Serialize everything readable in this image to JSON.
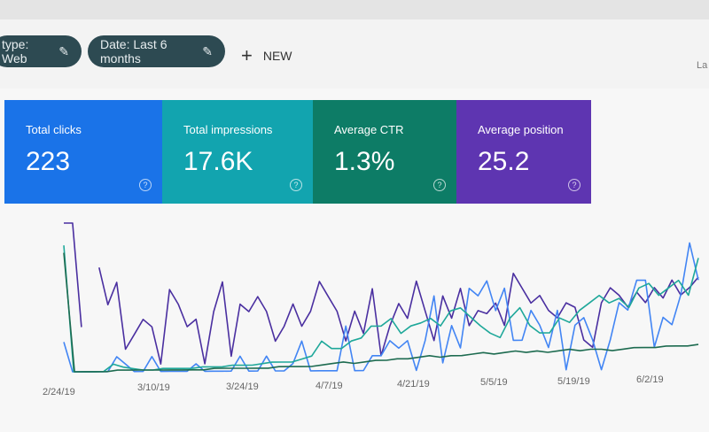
{
  "filters": [
    {
      "label": "type: Web",
      "icon": "pencil-icon"
    },
    {
      "label": "Date: Last 6 months",
      "icon": "pencil-icon"
    }
  ],
  "new_button": {
    "label": "NEW",
    "icon": "plus-icon"
  },
  "right_truncated": "La",
  "metrics": [
    {
      "label": "Total clicks",
      "value": "223",
      "color": "#1a73e8"
    },
    {
      "label": "Total impressions",
      "value": "17.6K",
      "color": "#12a4af"
    },
    {
      "label": "Average CTR",
      "value": "1.3%",
      "color": "#0d7c66"
    },
    {
      "label": "Average position",
      "value": "25.2",
      "color": "#5e35b1"
    }
  ],
  "chart_data": {
    "type": "line",
    "x_tick_labels": [
      "2/24/19",
      "3/10/19",
      "3/24/19",
      "4/7/19",
      "4/21/19",
      "5/5/19",
      "5/19/19",
      "6/2/19"
    ],
    "grid": false,
    "series": [
      {
        "color": "#4a2fa0",
        "values": [
          100,
          100,
          30,
          null,
          70,
          45,
          60,
          15,
          25,
          35,
          30,
          5,
          55,
          45,
          30,
          35,
          5,
          40,
          60,
          10,
          45,
          40,
          50,
          40,
          20,
          30,
          45,
          30,
          40,
          60,
          50,
          40,
          20,
          40,
          25,
          55,
          10,
          30,
          45,
          35,
          60,
          40,
          20,
          50,
          35,
          55,
          30,
          40,
          38,
          45,
          30,
          65,
          55,
          45,
          50,
          40,
          35,
          45,
          42,
          20,
          15,
          45,
          55,
          50,
          42,
          52,
          45,
          55,
          48,
          60,
          50,
          55,
          62
        ]
      },
      {
        "color": "#4285f4",
        "values": [
          20,
          0,
          0,
          0,
          0,
          0,
          10,
          5,
          0,
          0,
          10,
          0,
          0,
          0,
          0,
          5,
          0,
          0,
          0,
          0,
          10,
          0,
          0,
          10,
          0,
          0,
          5,
          20,
          0,
          0,
          0,
          0,
          30,
          0,
          0,
          10,
          10,
          20,
          15,
          20,
          0,
          20,
          50,
          5,
          30,
          15,
          55,
          50,
          60,
          40,
          55,
          20,
          20,
          40,
          30,
          15,
          40,
          0,
          30,
          35,
          20,
          0,
          20,
          45,
          40,
          60,
          60,
          15,
          35,
          30,
          50,
          85,
          60
        ]
      },
      {
        "color": "#1fa89a",
        "values": [
          85,
          0,
          0,
          0,
          0,
          5,
          3,
          2,
          1,
          1,
          2,
          2,
          2,
          2,
          3,
          3,
          3,
          4,
          4,
          4,
          5,
          6,
          6,
          6,
          8,
          10,
          20,
          15,
          15,
          20,
          22,
          30,
          30,
          35,
          25,
          30,
          32,
          35,
          30,
          40,
          42,
          36,
          30,
          25,
          22,
          35,
          42,
          30,
          25,
          25,
          35,
          32,
          40,
          45,
          50,
          45,
          48,
          42,
          55,
          58,
          50,
          55,
          60,
          50,
          75
        ]
      },
      {
        "color": "#1d6b50",
        "values": [
          80,
          0,
          0,
          0,
          0,
          1,
          1,
          1,
          1,
          1,
          1,
          1,
          1,
          1,
          2,
          2,
          2,
          2,
          2,
          2,
          3,
          3,
          3,
          3,
          4,
          5,
          6,
          5,
          6,
          7,
          7,
          8,
          8,
          9,
          10,
          9,
          10,
          10,
          11,
          12,
          11,
          12,
          13,
          12,
          13,
          12,
          13,
          14,
          13,
          14,
          14,
          13,
          14,
          15,
          15,
          15,
          16,
          16,
          16,
          17
        ]
      }
    ]
  }
}
